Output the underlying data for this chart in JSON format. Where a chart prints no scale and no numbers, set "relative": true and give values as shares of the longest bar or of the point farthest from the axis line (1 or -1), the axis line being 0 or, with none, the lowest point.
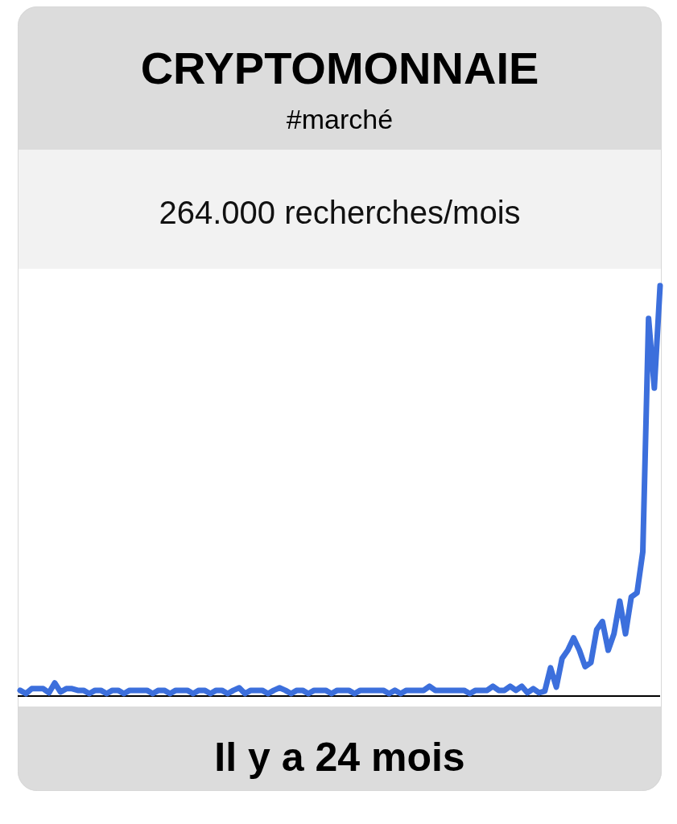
{
  "chart_data": {
    "type": "line",
    "title": "CRYPTOMONNAIE",
    "subtitle": "#marché",
    "xlabel": "Il y a 24 mois",
    "annotations": [
      "264.000 recherches/mois"
    ],
    "relative": true,
    "categories": [
      null,
      null,
      null,
      null,
      null,
      null,
      null,
      null,
      null,
      null,
      null,
      null,
      null,
      null,
      null,
      null,
      null,
      null,
      null,
      null,
      null,
      null,
      null,
      null,
      null,
      null,
      null,
      null,
      null,
      null,
      null,
      null,
      null,
      null,
      null,
      null,
      null,
      null,
      null,
      null,
      null,
      null,
      null,
      null,
      null,
      null,
      null,
      null,
      null,
      null,
      null,
      null,
      null,
      null,
      null,
      null,
      null,
      null,
      null,
      null,
      null,
      null,
      null,
      null,
      null,
      null,
      null,
      null,
      null,
      null,
      null,
      null,
      null,
      null,
      null,
      null,
      null,
      null,
      null,
      null,
      null,
      null,
      null,
      null,
      null,
      null,
      null,
      null,
      null,
      null,
      null,
      null,
      null,
      null,
      null,
      null,
      null,
      null,
      null,
      null,
      null,
      null,
      null,
      null,
      null,
      null,
      null,
      null,
      null,
      null,
      null,
      null
    ],
    "series": [
      {
        "color": "#3c6fdc",
        "values": [
          0.012,
          0.004,
          0.016,
          0.016,
          0.016,
          0.006,
          0.03,
          0.008,
          0.016,
          0.016,
          0.012,
          0.012,
          0.004,
          0.012,
          0.012,
          0.004,
          0.012,
          0.012,
          0.004,
          0.012,
          0.012,
          0.012,
          0.012,
          0.004,
          0.012,
          0.012,
          0.004,
          0.012,
          0.012,
          0.012,
          0.004,
          0.012,
          0.012,
          0.004,
          0.012,
          0.012,
          0.004,
          0.012,
          0.018,
          0.004,
          0.012,
          0.012,
          0.012,
          0.004,
          0.012,
          0.018,
          0.012,
          0.004,
          0.012,
          0.012,
          0.004,
          0.012,
          0.012,
          0.012,
          0.004,
          0.012,
          0.012,
          0.012,
          0.004,
          0.012,
          0.012,
          0.012,
          0.012,
          0.012,
          0.004,
          0.012,
          0.004,
          0.012,
          0.012,
          0.012,
          0.012,
          0.022,
          0.012,
          0.012,
          0.012,
          0.012,
          0.012,
          0.012,
          0.004,
          0.012,
          0.012,
          0.012,
          0.022,
          0.012,
          0.012,
          0.022,
          0.012,
          0.022,
          0.006,
          0.016,
          0.006,
          0.01,
          0.067,
          0.02,
          0.09,
          0.11,
          0.14,
          0.11,
          0.07,
          0.08,
          0.16,
          0.18,
          0.11,
          0.15,
          0.23,
          0.15,
          0.24,
          0.25,
          0.35,
          0.92,
          0.75,
          1.0
        ]
      }
    ]
  }
}
